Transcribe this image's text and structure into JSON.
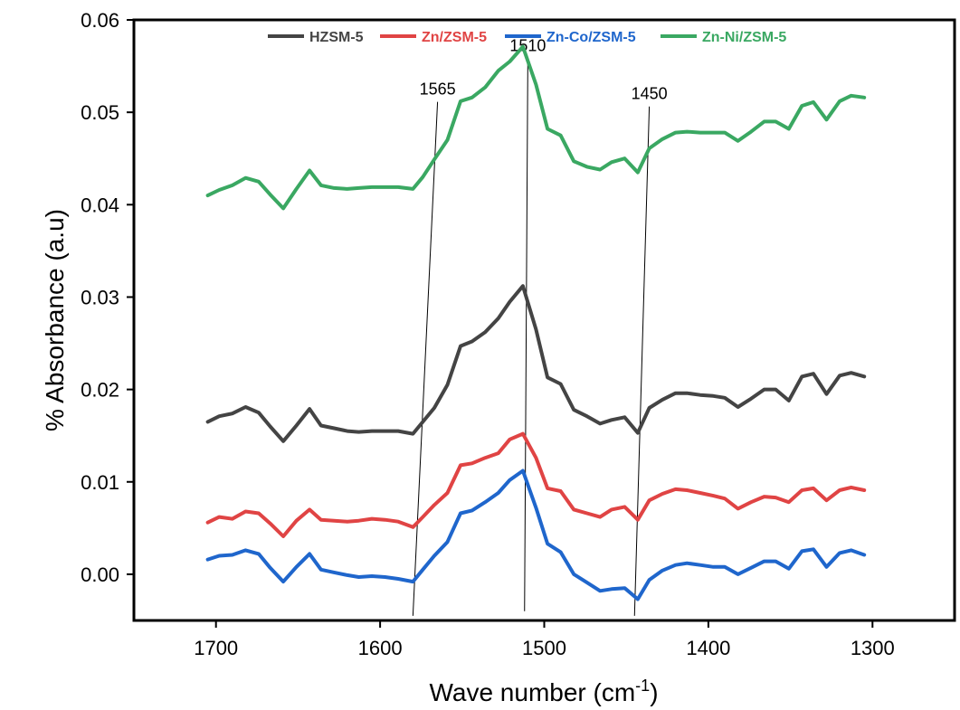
{
  "chart_data": {
    "type": "line",
    "title": "",
    "xlabel": "Wave number (cm",
    "xlabel_sup": "-1",
    "xlabel_close": ")",
    "ylabel": "% Absorbance (a.u)",
    "xlim": [
      1750,
      1250
    ],
    "ylim": [
      -0.005,
      0.06
    ],
    "x_reversed": true,
    "grid": false,
    "legend_position": "top",
    "xticks": [
      1700,
      1600,
      1500,
      1400,
      1300
    ],
    "xtick_labels": [
      "1700",
      "1600",
      "1500",
      "1400",
      "1300"
    ],
    "yticks": [
      0.0,
      0.01,
      0.02,
      0.03,
      0.04,
      0.05,
      0.06
    ],
    "ytick_labels": [
      "0.00",
      "0.01",
      "0.02",
      "0.03",
      "0.04",
      "0.05",
      "0.06"
    ],
    "series": [
      {
        "name": "HZSM-5",
        "color": "#444444",
        "x": [
          1705,
          1698,
          1690,
          1682,
          1674,
          1667,
          1659,
          1651,
          1643,
          1636,
          1628,
          1620,
          1613,
          1605,
          1597,
          1589,
          1580,
          1574,
          1567,
          1559,
          1551,
          1544,
          1536,
          1528,
          1521,
          1513,
          1505,
          1498,
          1490,
          1482,
          1474,
          1466,
          1459,
          1451,
          1443,
          1436,
          1428,
          1420,
          1413,
          1405,
          1397,
          1390,
          1382,
          1374,
          1366,
          1359,
          1351,
          1343,
          1336,
          1328,
          1320,
          1313,
          1305
        ],
        "y": [
          0.0165,
          0.0171,
          0.0174,
          0.0181,
          0.0175,
          0.016,
          0.0144,
          0.0161,
          0.0179,
          0.0161,
          0.0158,
          0.0155,
          0.0154,
          0.0155,
          0.0155,
          0.0155,
          0.0152,
          0.0165,
          0.018,
          0.0205,
          0.0247,
          0.0252,
          0.0262,
          0.0277,
          0.0295,
          0.0312,
          0.0265,
          0.0213,
          0.0206,
          0.0178,
          0.0171,
          0.0163,
          0.0167,
          0.017,
          0.0153,
          0.018,
          0.0189,
          0.0196,
          0.0196,
          0.0194,
          0.0193,
          0.0191,
          0.0181,
          0.019,
          0.02,
          0.02,
          0.0188,
          0.0214,
          0.0217,
          0.0195,
          0.0215,
          0.0218,
          0.0214
        ]
      },
      {
        "name": "Zn/ZSM-5",
        "color": "#e04444",
        "x": [
          1705,
          1698,
          1690,
          1682,
          1674,
          1667,
          1659,
          1651,
          1643,
          1636,
          1628,
          1620,
          1613,
          1605,
          1597,
          1589,
          1580,
          1574,
          1567,
          1559,
          1551,
          1544,
          1536,
          1528,
          1521,
          1513,
          1505,
          1498,
          1490,
          1482,
          1474,
          1466,
          1459,
          1451,
          1443,
          1436,
          1428,
          1420,
          1413,
          1405,
          1397,
          1390,
          1382,
          1374,
          1366,
          1359,
          1351,
          1343,
          1336,
          1328,
          1320,
          1313,
          1305
        ],
        "y": [
          0.0056,
          0.0062,
          0.006,
          0.0068,
          0.0066,
          0.0055,
          0.0041,
          0.0058,
          0.007,
          0.0059,
          0.0058,
          0.0057,
          0.0058,
          0.006,
          0.0059,
          0.0057,
          0.0051,
          0.0062,
          0.0075,
          0.0088,
          0.0118,
          0.012,
          0.0126,
          0.0131,
          0.0146,
          0.0152,
          0.0126,
          0.0093,
          0.009,
          0.007,
          0.0066,
          0.0062,
          0.007,
          0.0073,
          0.0059,
          0.008,
          0.0087,
          0.0092,
          0.0091,
          0.0088,
          0.0085,
          0.0082,
          0.0071,
          0.0078,
          0.0084,
          0.0083,
          0.0078,
          0.0091,
          0.0093,
          0.008,
          0.0091,
          0.0094,
          0.0091
        ]
      },
      {
        "name": "Zn-Co/ZSM-5",
        "color": "#1f66cc",
        "x": [
          1705,
          1698,
          1690,
          1682,
          1674,
          1667,
          1659,
          1651,
          1643,
          1636,
          1628,
          1620,
          1613,
          1605,
          1597,
          1589,
          1580,
          1574,
          1567,
          1559,
          1551,
          1544,
          1536,
          1528,
          1521,
          1513,
          1505,
          1498,
          1490,
          1482,
          1474,
          1466,
          1459,
          1451,
          1443,
          1436,
          1428,
          1420,
          1413,
          1405,
          1397,
          1390,
          1382,
          1374,
          1366,
          1359,
          1351,
          1343,
          1336,
          1328,
          1320,
          1313,
          1305
        ],
        "y": [
          0.0016,
          0.002,
          0.0021,
          0.0026,
          0.0022,
          0.0007,
          -0.0008,
          0.0008,
          0.0022,
          0.0005,
          0.0002,
          -0.0001,
          -0.0003,
          -0.0002,
          -0.0003,
          -0.0005,
          -0.0008,
          0.0005,
          0.002,
          0.0035,
          0.0066,
          0.0069,
          0.0078,
          0.0088,
          0.0102,
          0.0112,
          0.0072,
          0.0033,
          0.0024,
          0.0,
          -0.0009,
          -0.0018,
          -0.0016,
          -0.0015,
          -0.0027,
          -0.0006,
          0.0004,
          0.001,
          0.0012,
          0.001,
          0.0008,
          0.0008,
          0.0,
          0.0007,
          0.0014,
          0.0014,
          0.0006,
          0.0025,
          0.0027,
          0.0008,
          0.0023,
          0.0026,
          0.0021
        ]
      },
      {
        "name": "Zn-Ni/ZSM-5",
        "color": "#3aa862",
        "x": [
          1705,
          1698,
          1690,
          1682,
          1674,
          1667,
          1659,
          1651,
          1643,
          1636,
          1628,
          1620,
          1613,
          1605,
          1597,
          1589,
          1580,
          1574,
          1567,
          1559,
          1551,
          1544,
          1536,
          1528,
          1521,
          1513,
          1505,
          1498,
          1490,
          1482,
          1474,
          1466,
          1459,
          1451,
          1443,
          1436,
          1428,
          1420,
          1413,
          1405,
          1397,
          1390,
          1382,
          1374,
          1366,
          1359,
          1351,
          1343,
          1336,
          1328,
          1320,
          1313,
          1305
        ],
        "y": [
          0.041,
          0.0416,
          0.0421,
          0.0429,
          0.0425,
          0.0411,
          0.0396,
          0.0417,
          0.0437,
          0.0421,
          0.0418,
          0.0417,
          0.0418,
          0.0419,
          0.0419,
          0.0419,
          0.0417,
          0.043,
          0.0449,
          0.047,
          0.0512,
          0.0516,
          0.0527,
          0.0545,
          0.0555,
          0.0571,
          0.053,
          0.0482,
          0.0475,
          0.0447,
          0.0441,
          0.0438,
          0.0446,
          0.045,
          0.0435,
          0.0461,
          0.0471,
          0.0478,
          0.0479,
          0.0478,
          0.0478,
          0.0478,
          0.0469,
          0.0479,
          0.049,
          0.049,
          0.0482,
          0.0507,
          0.0511,
          0.0492,
          0.0512,
          0.0518,
          0.0516
        ]
      }
    ],
    "annotations": [
      {
        "label": "1565",
        "x_top": 1565,
        "x_bottom": 1580,
        "y_top": 0.0525,
        "y_bottom": -0.0045
      },
      {
        "label": "1510",
        "x_top": 1510,
        "x_bottom": 1512,
        "y_top": 0.0572,
        "y_bottom": -0.004
      },
      {
        "label": "1450",
        "x_top": 1436,
        "x_bottom": 1445,
        "y_top": 0.052,
        "y_bottom": -0.0045
      }
    ]
  }
}
